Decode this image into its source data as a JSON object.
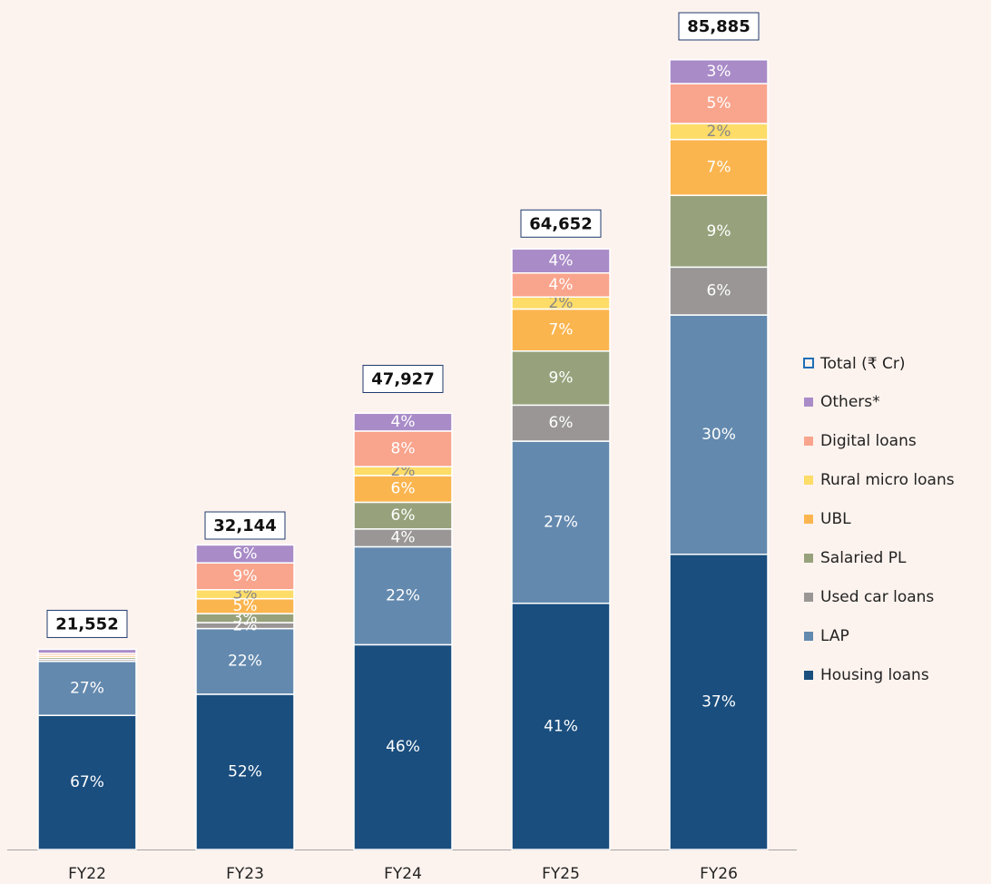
{
  "chart_data": {
    "type": "bar",
    "stacked": true,
    "categories": [
      "FY22",
      "FY23",
      "FY24",
      "FY25",
      "FY26"
    ],
    "totals": {
      "name": "Total (₹ Cr)",
      "color": "#1f6fb5",
      "values": [
        21552,
        32144,
        47927,
        64652,
        85885
      ],
      "value_labels": [
        "21,552",
        "32,144",
        "47,927",
        "64,652",
        "85,885"
      ]
    },
    "series": [
      {
        "name": "Housing loans",
        "color": "#1a4e7e",
        "values": [
          67,
          52,
          46,
          41,
          37
        ],
        "value_labels": [
          "67%",
          "52%",
          "46%",
          "41%",
          "37%"
        ]
      },
      {
        "name": "LAP",
        "color": "#6389ae",
        "values": [
          27,
          22,
          22,
          27,
          30
        ],
        "value_labels": [
          "27%",
          "22%",
          "22%",
          "27%",
          "30%"
        ]
      },
      {
        "name": "Used car loans",
        "color": "#9a9696",
        "values": [
          1,
          2,
          4,
          6,
          6
        ],
        "value_labels": [
          null,
          "2%",
          "4%",
          "6%",
          "6%"
        ]
      },
      {
        "name": "Salaried PL",
        "color": "#97a27c",
        "values": [
          1,
          3,
          6,
          9,
          9
        ],
        "value_labels": [
          null,
          "3%",
          "6%",
          "9%",
          "9%"
        ]
      },
      {
        "name": "UBL",
        "color": "#fbb54f",
        "values": [
          1,
          5,
          6,
          7,
          7
        ],
        "value_labels": [
          null,
          "5%",
          "6%",
          "7%",
          "7%"
        ]
      },
      {
        "name": "Rural micro loans",
        "color": "#fddc68",
        "values": [
          0,
          3,
          2,
          2,
          2
        ],
        "value_labels": [
          null,
          "3%",
          "2%",
          "2%",
          "2%"
        ]
      },
      {
        "name": "Digital loans",
        "color": "#f9a48c",
        "values": [
          1,
          9,
          8,
          4,
          5
        ],
        "value_labels": [
          null,
          "9%",
          "8%",
          "4%",
          "5%"
        ]
      },
      {
        "name": "Others*",
        "color": "#a98bc8",
        "values": [
          2,
          6,
          4,
          4,
          3
        ],
        "value_labels": [
          null,
          "6%",
          "4%",
          "4%",
          "3%"
        ]
      }
    ]
  }
}
